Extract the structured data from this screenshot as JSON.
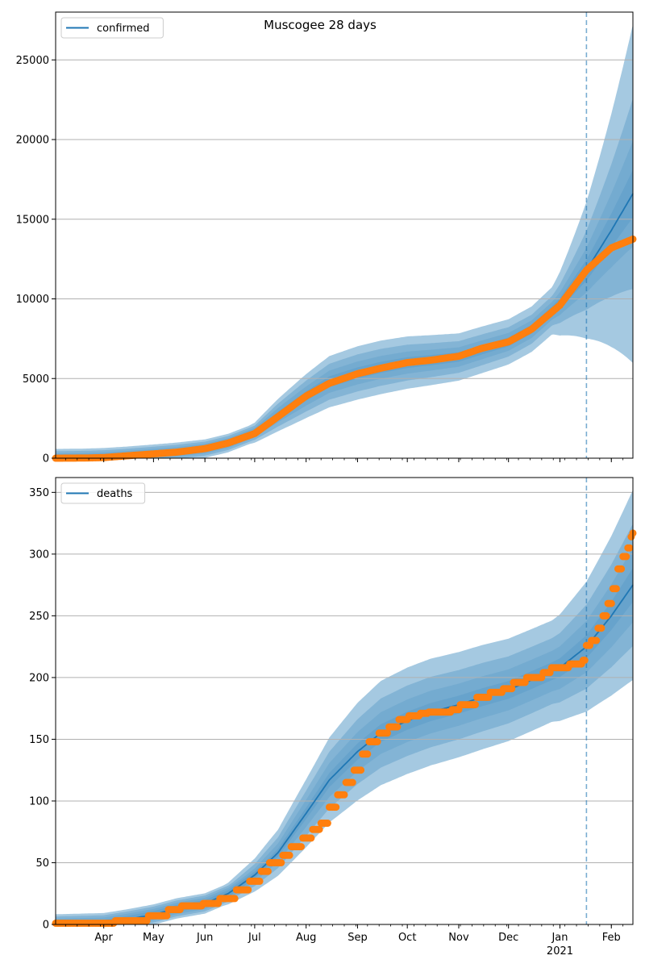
{
  "suptitle": "Muscogee 28 days",
  "colors": {
    "model": "#1f77b4",
    "observed": "#ff7f0e",
    "band": "#1f77b4",
    "grid": "#b0b0b0",
    "forecast_line": "#1f77b4"
  },
  "x_axis": {
    "start": "2020-03-03",
    "end": "2021-02-14",
    "forecast_start": "2021-01-17",
    "month_ticks": [
      {
        "date": "2020-04-01",
        "label": "Apr"
      },
      {
        "date": "2020-05-01",
        "label": "May"
      },
      {
        "date": "2020-06-01",
        "label": "Jun"
      },
      {
        "date": "2020-07-01",
        "label": "Jul"
      },
      {
        "date": "2020-08-01",
        "label": "Aug"
      },
      {
        "date": "2020-09-01",
        "label": "Sep"
      },
      {
        "date": "2020-10-01",
        "label": "Oct"
      },
      {
        "date": "2020-11-01",
        "label": "Nov"
      },
      {
        "date": "2020-12-01",
        "label": "Dec"
      },
      {
        "date": "2021-01-01",
        "label": "Jan"
      },
      {
        "date": "2021-02-01",
        "label": "Feb"
      }
    ],
    "year_label": "2021"
  },
  "chart_data": [
    {
      "type": "line",
      "legend": "confirmed",
      "legend_position": "top-left",
      "grid": "horizontal",
      "ylim": [
        0,
        28000
      ],
      "yticks": [
        0,
        5000,
        10000,
        15000,
        20000,
        25000
      ],
      "model_path": [
        [
          "2020-03-03",
          0
        ],
        [
          "2020-03-20",
          20
        ],
        [
          "2020-04-01",
          60
        ],
        [
          "2020-04-15",
          150
        ],
        [
          "2020-05-01",
          280
        ],
        [
          "2020-05-15",
          400
        ],
        [
          "2020-06-01",
          600
        ],
        [
          "2020-06-15",
          950
        ],
        [
          "2020-07-01",
          1600
        ],
        [
          "2020-07-15",
          2700
        ],
        [
          "2020-08-01",
          3900
        ],
        [
          "2020-08-15",
          4800
        ],
        [
          "2020-09-01",
          5350
        ],
        [
          "2020-09-15",
          5700
        ],
        [
          "2020-10-01",
          6000
        ],
        [
          "2020-10-15",
          6150
        ],
        [
          "2020-11-01",
          6350
        ],
        [
          "2020-11-15",
          6800
        ],
        [
          "2020-12-01",
          7300
        ],
        [
          "2020-12-15",
          8100
        ],
        [
          "2021-01-01",
          9700
        ],
        [
          "2021-01-17",
          11800
        ],
        [
          "2021-02-01",
          14300
        ],
        [
          "2021-02-14",
          16600
        ]
      ],
      "bands": [
        {
          "fraction": 0.4,
          "ratio_by_progress": [
            [
              0,
              0.55
            ],
            [
              0.86,
              0.16
            ],
            [
              1,
              0.64
            ]
          ]
        },
        {
          "fraction": 0.25,
          "ratio_by_progress": [
            [
              0,
              0.4
            ],
            [
              0.86,
              0.1
            ],
            [
              1,
              0.36
            ]
          ]
        },
        {
          "fraction": 0.15,
          "ratio_by_progress": [
            [
              0,
              0.25
            ],
            [
              0.86,
              0.06
            ],
            [
              1,
              0.2
            ]
          ]
        },
        {
          "fraction": 0.15,
          "ratio_by_progress": [
            [
              0,
              0.12
            ],
            [
              0.86,
              0.03
            ],
            [
              1,
              0.09
            ]
          ]
        }
      ],
      "observed_path": [
        [
          "2020-03-03",
          0
        ],
        [
          "2020-03-20",
          10
        ],
        [
          "2020-04-01",
          40
        ],
        [
          "2020-04-15",
          150
        ],
        [
          "2020-05-01",
          270
        ],
        [
          "2020-05-15",
          380
        ],
        [
          "2020-06-01",
          600
        ],
        [
          "2020-06-15",
          950
        ],
        [
          "2020-07-01",
          1550
        ],
        [
          "2020-07-15",
          2600
        ],
        [
          "2020-08-01",
          3900
        ],
        [
          "2020-08-15",
          4700
        ],
        [
          "2020-09-01",
          5300
        ],
        [
          "2020-09-15",
          5650
        ],
        [
          "2020-10-01",
          6000
        ],
        [
          "2020-10-15",
          6150
        ],
        [
          "2020-11-01",
          6400
        ],
        [
          "2020-11-15",
          6900
        ],
        [
          "2020-12-01",
          7300
        ],
        [
          "2020-12-15",
          8100
        ],
        [
          "2021-01-01",
          9600
        ],
        [
          "2021-01-17",
          11800
        ],
        [
          "2021-02-01",
          13200
        ],
        [
          "2021-02-14",
          13750
        ]
      ]
    },
    {
      "type": "line",
      "legend": "deaths",
      "legend_position": "top-left",
      "grid": "horizontal",
      "ylim": [
        0,
        362
      ],
      "yticks": [
        0,
        50,
        100,
        150,
        200,
        250,
        300,
        350
      ],
      "model_path": [
        [
          "2020-03-03",
          0
        ],
        [
          "2020-04-01",
          1
        ],
        [
          "2020-04-15",
          4
        ],
        [
          "2020-05-01",
          8
        ],
        [
          "2020-05-15",
          13
        ],
        [
          "2020-06-01",
          17
        ],
        [
          "2020-06-15",
          25
        ],
        [
          "2020-07-01",
          40
        ],
        [
          "2020-07-15",
          58
        ],
        [
          "2020-08-01",
          90
        ],
        [
          "2020-08-15",
          117
        ],
        [
          "2020-09-01",
          140
        ],
        [
          "2020-09-15",
          155
        ],
        [
          "2020-10-01",
          165
        ],
        [
          "2020-10-15",
          172
        ],
        [
          "2020-11-01",
          178
        ],
        [
          "2020-11-15",
          184
        ],
        [
          "2020-12-01",
          190
        ],
        [
          "2020-12-15",
          198
        ],
        [
          "2021-01-01",
          208
        ],
        [
          "2021-01-17",
          225
        ],
        [
          "2021-02-01",
          250
        ],
        [
          "2021-02-14",
          275
        ]
      ],
      "bands": [
        {
          "fraction": 0.4,
          "ratio_by_progress": [
            [
              0,
              0.45
            ],
            [
              0.45,
              0.3
            ],
            [
              0.86,
              0.2
            ],
            [
              1,
              0.28
            ]
          ]
        },
        {
          "fraction": 0.25,
          "ratio_by_progress": [
            [
              0,
              0.3
            ],
            [
              0.45,
              0.2
            ],
            [
              0.86,
              0.13
            ],
            [
              1,
              0.18
            ]
          ]
        },
        {
          "fraction": 0.15,
          "ratio_by_progress": [
            [
              0,
              0.18
            ],
            [
              0.45,
              0.12
            ],
            [
              0.86,
              0.08
            ],
            [
              1,
              0.11
            ]
          ]
        },
        {
          "fraction": 0.15,
          "ratio_by_progress": [
            [
              0,
              0.08
            ],
            [
              0.45,
              0.05
            ],
            [
              0.86,
              0.035
            ],
            [
              1,
              0.05
            ]
          ]
        }
      ],
      "observed_steps": [
        [
          "2020-03-03",
          1
        ],
        [
          "2020-04-08",
          3
        ],
        [
          "2020-04-28",
          7
        ],
        [
          "2020-05-10",
          12
        ],
        [
          "2020-05-18",
          15
        ],
        [
          "2020-05-31",
          17
        ],
        [
          "2020-06-10",
          21
        ],
        [
          "2020-06-20",
          28
        ],
        [
          "2020-06-28",
          35
        ],
        [
          "2020-07-05",
          43
        ],
        [
          "2020-07-10",
          50
        ],
        [
          "2020-07-18",
          56
        ],
        [
          "2020-07-23",
          63
        ],
        [
          "2020-07-30",
          70
        ],
        [
          "2020-08-05",
          77
        ],
        [
          "2020-08-10",
          82
        ],
        [
          "2020-08-15",
          95
        ],
        [
          "2020-08-20",
          105
        ],
        [
          "2020-08-25",
          115
        ],
        [
          "2020-08-30",
          125
        ],
        [
          "2020-09-04",
          138
        ],
        [
          "2020-09-08",
          148
        ],
        [
          "2020-09-14",
          155
        ],
        [
          "2020-09-20",
          160
        ],
        [
          "2020-09-26",
          166
        ],
        [
          "2020-10-02",
          169
        ],
        [
          "2020-10-09",
          171
        ],
        [
          "2020-10-14",
          172
        ],
        [
          "2020-10-28",
          174
        ],
        [
          "2020-11-02",
          178
        ],
        [
          "2020-11-12",
          184
        ],
        [
          "2020-11-20",
          188
        ],
        [
          "2020-11-28",
          191
        ],
        [
          "2020-12-04",
          196
        ],
        [
          "2020-12-12",
          200
        ],
        [
          "2020-12-22",
          204
        ],
        [
          "2020-12-27",
          208
        ],
        [
          "2021-01-07",
          211
        ],
        [
          "2021-01-15",
          214
        ],
        [
          "2021-01-17",
          226
        ],
        [
          "2021-01-20",
          230
        ],
        [
          "2021-01-24",
          240
        ],
        [
          "2021-01-27",
          250
        ],
        [
          "2021-01-30",
          260
        ],
        [
          "2021-02-02",
          272
        ],
        [
          "2021-02-05",
          288
        ],
        [
          "2021-02-08",
          298
        ],
        [
          "2021-02-11",
          305
        ],
        [
          "2021-02-13",
          314
        ],
        [
          "2021-02-14",
          317
        ]
      ]
    }
  ]
}
